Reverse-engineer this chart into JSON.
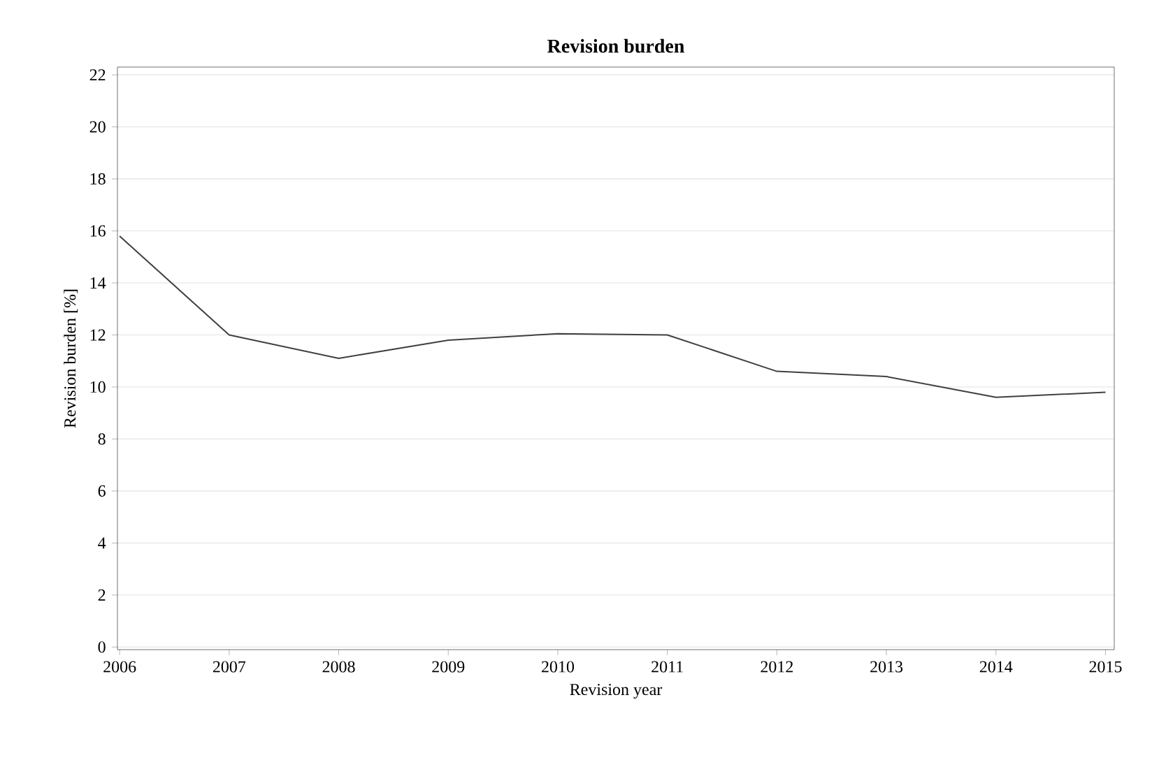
{
  "chart_data": {
    "type": "line",
    "title": "Revision burden",
    "xlabel": "Revision year",
    "ylabel": "Revision burden [%]",
    "x": [
      2006,
      2007,
      2008,
      2009,
      2010,
      2011,
      2012,
      2013,
      2014,
      2015
    ],
    "series": [
      {
        "color": "#404040",
        "values": [
          15.8,
          12.0,
          11.1,
          11.8,
          12.05,
          12.0,
          10.6,
          10.4,
          9.6,
          9.8
        ]
      }
    ],
    "xlim": [
      2005.98,
      2015.08
    ],
    "ylim": [
      -0.1,
      22.3
    ],
    "xticks": [
      2006,
      2007,
      2008,
      2009,
      2010,
      2011,
      2012,
      2013,
      2014,
      2015
    ],
    "yticks": [
      0,
      2,
      4,
      6,
      8,
      10,
      12,
      14,
      16,
      18,
      20,
      22
    ],
    "grid": "y",
    "marker": "none",
    "line_style": "solid"
  }
}
